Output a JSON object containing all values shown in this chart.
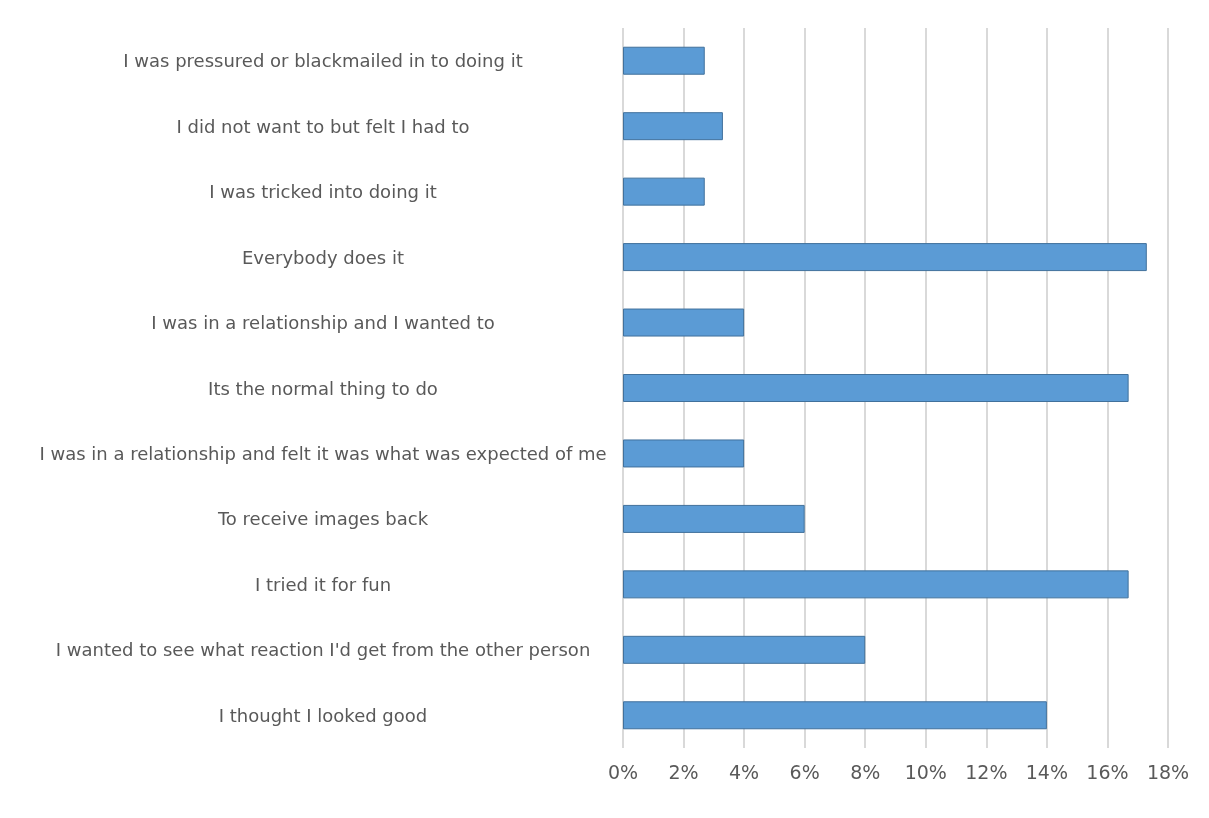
{
  "chart_data": {
    "type": "bar",
    "orientation": "horizontal",
    "categories": [
      "I was pressured or blackmailed in to doing it",
      "I did not want to but felt I had to",
      "I was tricked into doing it",
      "Everybody does it",
      "I was in a relationship and I wanted to",
      "Its the normal thing to do",
      "I was in a relationship and felt it was what was expected of me",
      "To receive images back",
      "I tried it for fun",
      "I wanted to see what reaction I'd get from the other person",
      "I thought I looked good"
    ],
    "values": [
      2.7,
      3.3,
      2.7,
      17.3,
      4.0,
      16.7,
      4.0,
      6.0,
      16.7,
      8.0,
      14.0
    ],
    "color": "#5b9bd5",
    "xlim": [
      0,
      18
    ],
    "xticks": [
      {
        "value": 0,
        "label": "0%"
      },
      {
        "value": 2,
        "label": "2%"
      },
      {
        "value": 4,
        "label": "4%"
      },
      {
        "value": 6,
        "label": "6%"
      },
      {
        "value": 8,
        "label": "8%"
      },
      {
        "value": 10,
        "label": "10%"
      },
      {
        "value": 12,
        "label": "12%"
      },
      {
        "value": 14,
        "label": "14%"
      },
      {
        "value": 16,
        "label": "16%"
      },
      {
        "value": 18,
        "label": "18%"
      }
    ],
    "grid": true
  }
}
